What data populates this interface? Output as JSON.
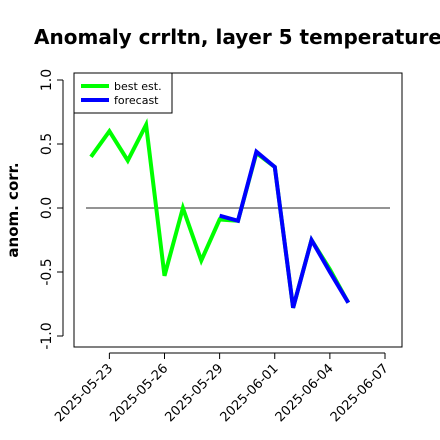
{
  "chart_data": {
    "type": "line",
    "title": "Anomaly crrltn, layer 5 temperature",
    "xlabel": "",
    "ylabel": "anom. corr.",
    "ylim": [
      -1.0,
      1.0
    ],
    "yticks": [
      "-1.0",
      "-0.5",
      "0.0",
      "0.5",
      "1.0"
    ],
    "xticks": [
      "2025-05-23",
      "2025-05-26",
      "2025-05-29",
      "2025-06-01",
      "2025-06-04",
      "2025-06-07"
    ],
    "xtick_colors": [
      "#000000",
      "#000000",
      "#228b22",
      "#000000",
      "#000000",
      "#000000"
    ],
    "x": [
      "2025-05-22",
      "2025-05-23",
      "2025-05-24",
      "2025-05-25",
      "2025-05-26",
      "2025-05-27",
      "2025-05-28",
      "2025-05-29",
      "2025-05-30",
      "2025-05-31",
      "2025-06-01",
      "2025-06-02",
      "2025-06-03",
      "2025-06-04",
      "2025-06-05"
    ],
    "series": [
      {
        "name": "best est.",
        "color": "#00ff00",
        "values": [
          0.4,
          0.6,
          0.37,
          0.65,
          -0.53,
          0.0,
          -0.41,
          -0.09,
          -0.1,
          0.43,
          0.32,
          -0.78,
          -0.25,
          -0.48,
          -0.74
        ]
      },
      {
        "name": "forecast",
        "color": "#0000ff",
        "values": [
          null,
          null,
          null,
          null,
          null,
          null,
          null,
          -0.06,
          -0.1,
          0.44,
          0.32,
          -0.78,
          -0.25,
          -0.5,
          -0.74
        ]
      }
    ],
    "reference_line": 0.0,
    "grid": false,
    "legend": "top-left"
  }
}
